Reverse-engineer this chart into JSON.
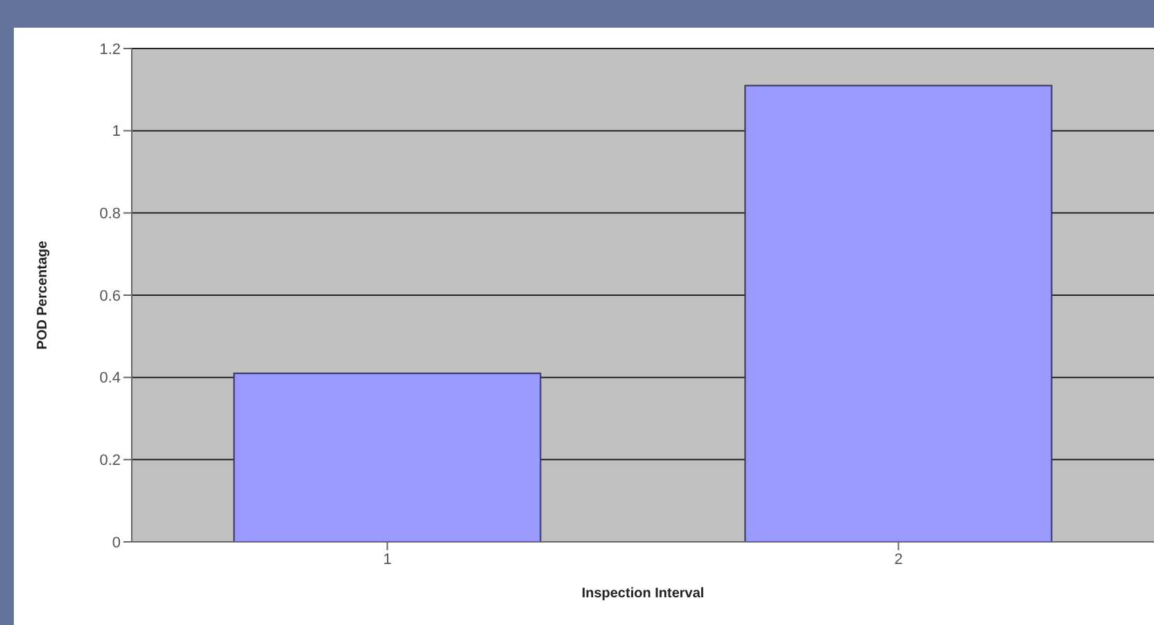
{
  "chart_data": {
    "type": "bar",
    "xlabel": "Inspection Interval",
    "ylabel": "POD Percentage",
    "categories": [
      "1",
      "2"
    ],
    "values": [
      0.41,
      1.11
    ],
    "color": "#9999ff",
    "ylim": [
      0,
      1.2
    ],
    "yticks": [
      0,
      0.2,
      0.4,
      0.6,
      0.8,
      1,
      1.2
    ],
    "grid": "y"
  }
}
